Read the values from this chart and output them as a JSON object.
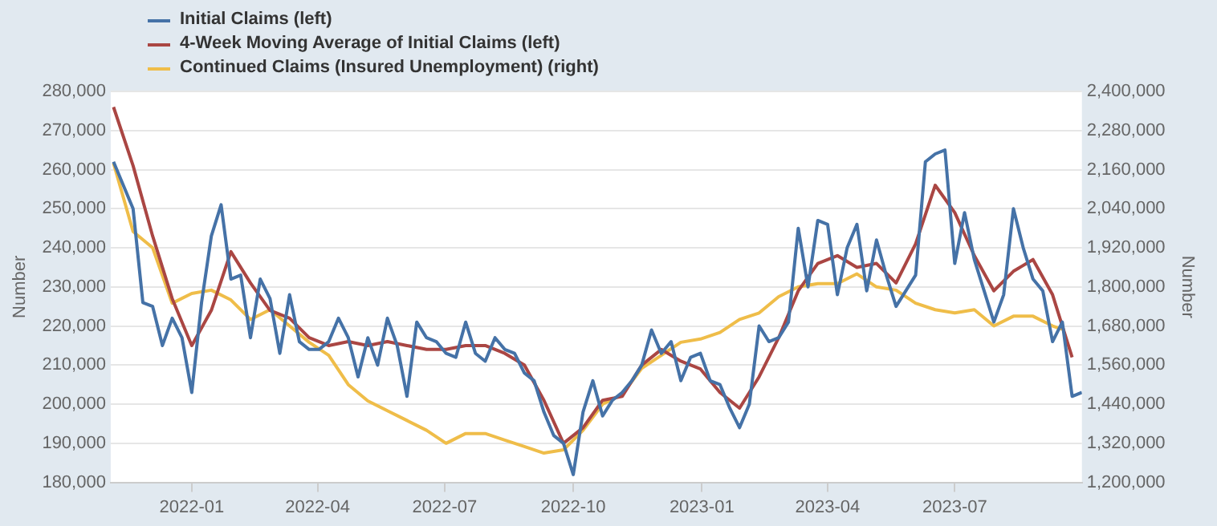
{
  "chart_data": {
    "type": "line",
    "ylabel": "Number",
    "y2label": "Number",
    "x": [
      "2021-11-06",
      "2021-11-13",
      "2021-11-20",
      "2021-11-27",
      "2021-12-04",
      "2021-12-11",
      "2021-12-18",
      "2021-12-25",
      "2022-01-01",
      "2022-01-08",
      "2022-01-15",
      "2022-01-22",
      "2022-01-29",
      "2022-02-05",
      "2022-02-12",
      "2022-02-19",
      "2022-02-26",
      "2022-03-05",
      "2022-03-12",
      "2022-03-19",
      "2022-03-26",
      "2022-04-02",
      "2022-04-09",
      "2022-04-16",
      "2022-04-23",
      "2022-04-30",
      "2022-05-07",
      "2022-05-14",
      "2022-05-21",
      "2022-05-28",
      "2022-06-04",
      "2022-06-11",
      "2022-06-18",
      "2022-06-25",
      "2022-07-02",
      "2022-07-09",
      "2022-07-16",
      "2022-07-23",
      "2022-07-30",
      "2022-08-06",
      "2022-08-13",
      "2022-08-20",
      "2022-08-27",
      "2022-09-03",
      "2022-09-10",
      "2022-09-17",
      "2022-09-24",
      "2022-10-01",
      "2022-10-08",
      "2022-10-15",
      "2022-10-22",
      "2022-10-29",
      "2022-11-05",
      "2022-11-12",
      "2022-11-19",
      "2022-11-26",
      "2022-12-03",
      "2022-12-10",
      "2022-12-17",
      "2022-12-24",
      "2022-12-31",
      "2023-01-07",
      "2023-01-14",
      "2023-01-21",
      "2023-01-28",
      "2023-02-04",
      "2023-02-11",
      "2023-02-18",
      "2023-02-25",
      "2023-03-04",
      "2023-03-11",
      "2023-03-18",
      "2023-03-25",
      "2023-04-01",
      "2023-04-08",
      "2023-04-15",
      "2023-04-22",
      "2023-04-29",
      "2023-05-06",
      "2023-05-13",
      "2023-05-20",
      "2023-05-27",
      "2023-06-03",
      "2023-06-10",
      "2023-06-17",
      "2023-06-24",
      "2023-07-01",
      "2023-07-08",
      "2023-07-15",
      "2023-07-22",
      "2023-07-29",
      "2023-08-05",
      "2023-08-12",
      "2023-08-19",
      "2023-08-26",
      "2023-09-02",
      "2023-09-09",
      "2023-09-16",
      "2023-09-23",
      "2023-09-30"
    ],
    "series": [
      {
        "name": "Initial Claims (left)",
        "color": "#4572a7",
        "values": [
          262000,
          256000,
          250000,
          226000,
          225000,
          215000,
          222000,
          217000,
          203000,
          226000,
          243000,
          251000,
          232000,
          233000,
          217000,
          232000,
          227000,
          213000,
          228000,
          216000,
          214000,
          214000,
          216000,
          222000,
          217000,
          207000,
          217000,
          210000,
          222000,
          215000,
          202000,
          221000,
          217000,
          216000,
          213000,
          212000,
          221000,
          213000,
          211000,
          217000,
          214000,
          213000,
          208000,
          206000,
          198000,
          192000,
          190000,
          182000,
          198000,
          206000,
          197000,
          201000,
          203000,
          206000,
          210000,
          219000,
          213000,
          216000,
          206000,
          212000,
          213000,
          206000,
          205000,
          199000,
          194000,
          200000,
          220000,
          216000,
          217000,
          221000,
          245000,
          230000,
          247000,
          246000,
          228000,
          240000,
          246000,
          229000,
          242000,
          233000,
          225000,
          229000,
          233000,
          262000,
          264000,
          265000,
          236000,
          249000,
          237000,
          229000,
          221000,
          228000,
          250000,
          240000,
          232000,
          229000,
          216000,
          221000,
          202000,
          203000
        ]
      },
      {
        "name": "4-Week Moving Average of Initial Claims (left)",
        "color": "#aa4643",
        "x": [
          "2021-11-06",
          "2021-11-20",
          "2021-12-04",
          "2021-12-18",
          "2022-01-01",
          "2022-01-15",
          "2022-01-29",
          "2022-02-12",
          "2022-02-26",
          "2022-03-12",
          "2022-03-26",
          "2022-04-09",
          "2022-04-23",
          "2022-05-07",
          "2022-05-21",
          "2022-06-04",
          "2022-06-18",
          "2022-07-02",
          "2022-07-16",
          "2022-07-30",
          "2022-08-13",
          "2022-08-27",
          "2022-09-10",
          "2022-09-24",
          "2022-10-08",
          "2022-10-22",
          "2022-11-05",
          "2022-11-19",
          "2022-12-03",
          "2022-12-17",
          "2022-12-31",
          "2023-01-14",
          "2023-01-28",
          "2023-02-11",
          "2023-02-25",
          "2023-03-11",
          "2023-03-25",
          "2023-04-08",
          "2023-04-22",
          "2023-05-06",
          "2023-05-20",
          "2023-06-03",
          "2023-06-17",
          "2023-07-01",
          "2023-07-15",
          "2023-07-29",
          "2023-08-12",
          "2023-08-26",
          "2023-09-09",
          "2023-09-23"
        ],
        "values": [
          276000,
          261000,
          243000,
          227000,
          215000,
          224000,
          239000,
          231000,
          224000,
          222000,
          217000,
          215000,
          216000,
          215000,
          216000,
          215000,
          214000,
          214000,
          215000,
          215000,
          213000,
          210000,
          201000,
          190000,
          194000,
          201000,
          202000,
          210000,
          214000,
          211000,
          209000,
          203000,
          199000,
          207000,
          217000,
          229000,
          236000,
          238000,
          235000,
          236000,
          231000,
          241000,
          256000,
          249000,
          238000,
          229000,
          234000,
          237000,
          228000,
          212000
        ]
      },
      {
        "name": "Continued Claims (Insured Unemployment) (right)",
        "color": "#efbd49",
        "axis": "y2",
        "x": [
          "2021-11-06",
          "2021-11-20",
          "2021-12-04",
          "2021-12-18",
          "2022-01-01",
          "2022-01-15",
          "2022-01-29",
          "2022-02-12",
          "2022-02-26",
          "2022-03-12",
          "2022-03-26",
          "2022-04-09",
          "2022-04-23",
          "2022-05-07",
          "2022-05-21",
          "2022-06-04",
          "2022-06-18",
          "2022-07-02",
          "2022-07-16",
          "2022-07-30",
          "2022-08-13",
          "2022-08-27",
          "2022-09-10",
          "2022-09-24",
          "2022-10-08",
          "2022-10-22",
          "2022-11-05",
          "2022-11-19",
          "2022-12-03",
          "2022-12-17",
          "2022-12-31",
          "2023-01-14",
          "2023-01-28",
          "2023-02-11",
          "2023-02-25",
          "2023-03-11",
          "2023-03-25",
          "2023-04-08",
          "2023-04-22",
          "2023-05-06",
          "2023-05-20",
          "2023-06-03",
          "2023-06-17",
          "2023-07-01",
          "2023-07-15",
          "2023-07-29",
          "2023-08-12",
          "2023-08-26",
          "2023-09-09",
          "2023-09-16"
        ],
        "values": [
          2180000,
          1970000,
          1920000,
          1750000,
          1780000,
          1790000,
          1760000,
          1700000,
          1730000,
          1680000,
          1630000,
          1590000,
          1500000,
          1450000,
          1420000,
          1390000,
          1360000,
          1320000,
          1350000,
          1350000,
          1330000,
          1310000,
          1290000,
          1300000,
          1360000,
          1440000,
          1470000,
          1550000,
          1590000,
          1630000,
          1640000,
          1660000,
          1700000,
          1720000,
          1770000,
          1800000,
          1810000,
          1810000,
          1840000,
          1800000,
          1790000,
          1750000,
          1730000,
          1720000,
          1730000,
          1680000,
          1710000,
          1710000,
          1680000,
          1670000
        ]
      }
    ],
    "xlim": [
      "2021-11-04",
      "2023-09-30"
    ],
    "xticks": [
      "2022-01",
      "2022-04",
      "2022-07",
      "2022-10",
      "2023-01",
      "2023-04",
      "2023-07"
    ],
    "ylim": [
      180000,
      280000
    ],
    "yticks": [
      {
        "value": 180000,
        "label": "180,000"
      },
      {
        "value": 190000,
        "label": "190,000"
      },
      {
        "value": 200000,
        "label": "200,000"
      },
      {
        "value": 210000,
        "label": "210,000"
      },
      {
        "value": 220000,
        "label": "220,000"
      },
      {
        "value": 230000,
        "label": "230,000"
      },
      {
        "value": 240000,
        "label": "240,000"
      },
      {
        "value": 250000,
        "label": "250,000"
      },
      {
        "value": 260000,
        "label": "260,000"
      },
      {
        "value": 270000,
        "label": "270,000"
      },
      {
        "value": 280000,
        "label": "280,000"
      }
    ],
    "y2lim": [
      1200000,
      2400000
    ],
    "y2ticks": [
      {
        "value": 1200000,
        "label": "1,200,000"
      },
      {
        "value": 1320000,
        "label": "1,320,000"
      },
      {
        "value": 1440000,
        "label": "1,440,000"
      },
      {
        "value": 1560000,
        "label": "1,560,000"
      },
      {
        "value": 1680000,
        "label": "1,680,000"
      },
      {
        "value": 1800000,
        "label": "1,800,000"
      },
      {
        "value": 1920000,
        "label": "1,920,000"
      },
      {
        "value": 2040000,
        "label": "2,040,000"
      },
      {
        "value": 2160000,
        "label": "2,160,000"
      },
      {
        "value": 2280000,
        "label": "2,280,000"
      },
      {
        "value": 2400000,
        "label": "2,400,000"
      }
    ],
    "grid": "y",
    "legend": "top left"
  }
}
